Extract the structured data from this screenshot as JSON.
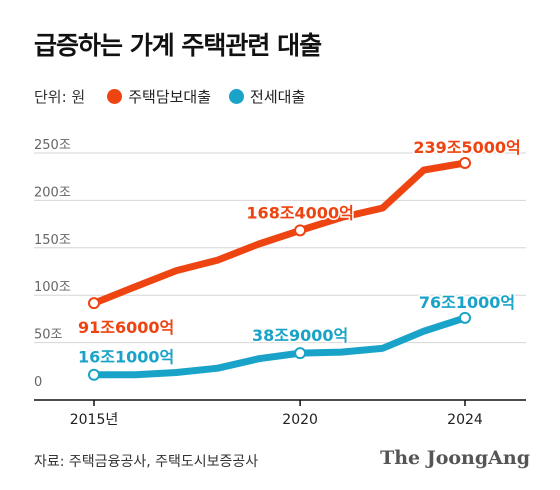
{
  "title": "급증하는 가계 주택관련 대출",
  "legend": {
    "unit": "단위: 원",
    "items": [
      {
        "label": "주택담보대출",
        "color": "#ee4411"
      },
      {
        "label": "전세대출",
        "color": "#1aa3c9"
      }
    ]
  },
  "source": "자료: 주택금융공사, 주택도시보증공사",
  "logo": "The JoongAng",
  "chart_data": {
    "type": "line",
    "x": [
      2015,
      2016,
      2017,
      2018,
      2019,
      2020,
      2021,
      2022,
      2023,
      2024
    ],
    "xticks": [
      {
        "value": 2015,
        "label": "2015년"
      },
      {
        "value": 2020,
        "label": "2020"
      },
      {
        "value": 2024,
        "label": "2024"
      }
    ],
    "yticks": [
      {
        "value": 0,
        "label": "0"
      },
      {
        "value": 50,
        "label": "50조"
      },
      {
        "value": 100,
        "label": "100조"
      },
      {
        "value": 150,
        "label": "150조"
      },
      {
        "value": 200,
        "label": "200조"
      },
      {
        "value": 250,
        "label": "250조"
      }
    ],
    "ylim": [
      0,
      250
    ],
    "grid": true,
    "series": [
      {
        "name": "주택담보대출",
        "color": "#ee4411",
        "values": [
          91.6,
          109,
          126,
          137,
          154,
          168.4,
          182,
          192,
          232,
          239.5
        ],
        "labels": [
          {
            "index": 0,
            "text": "91조6000억"
          },
          {
            "index": 5,
            "text": "168조4000억"
          },
          {
            "index": 9,
            "text": "239조5000억"
          }
        ]
      },
      {
        "name": "전세대출",
        "color": "#1aa3c9",
        "values": [
          16.1,
          16,
          18.5,
          23,
          33,
          38.9,
          40,
          44,
          62,
          76.1
        ],
        "labels": [
          {
            "index": 0,
            "text": "16조1000억"
          },
          {
            "index": 5,
            "text": "38조9000억"
          },
          {
            "index": 9,
            "text": "76조1000억"
          }
        ]
      }
    ]
  }
}
